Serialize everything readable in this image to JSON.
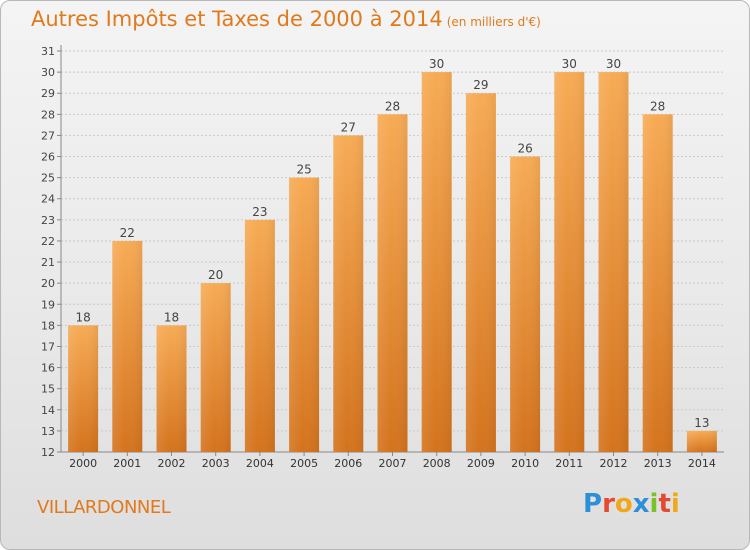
{
  "header": {
    "title": "Autres Impôts et Taxes de 2000 à 2014",
    "unit": "(en milliers d'€)"
  },
  "footer": {
    "commune": "VILLARDONNEL",
    "logo_letters": [
      "P",
      "r",
      "o",
      "x",
      "i",
      "t",
      "i"
    ],
    "logo_colors": [
      "#2d8fd6",
      "#e34a2f",
      "#f2a71b",
      "#2d8fd6",
      "#7bbf2a",
      "#e34a2f",
      "#f2a71b"
    ]
  },
  "colors": {
    "accent": "#e07a1c",
    "bar_light": "#f7ab55",
    "bar_dark": "#d4731d"
  },
  "chart_data": {
    "type": "bar",
    "title": "Autres Impôts et Taxes de 2000 à 2014",
    "xlabel": "",
    "ylabel": "",
    "categories": [
      "2000",
      "2001",
      "2002",
      "2003",
      "2004",
      "2005",
      "2006",
      "2007",
      "2008",
      "2009",
      "2010",
      "2011",
      "2012",
      "2013",
      "2014"
    ],
    "values": [
      18,
      22,
      18,
      20,
      23,
      25,
      27,
      28,
      30,
      29,
      26,
      30,
      30,
      28,
      13
    ],
    "ylim": [
      12,
      31
    ],
    "yticks": [
      12,
      13,
      14,
      15,
      16,
      17,
      18,
      19,
      20,
      21,
      22,
      23,
      24,
      25,
      26,
      27,
      28,
      29,
      30,
      31
    ],
    "grid": true
  }
}
